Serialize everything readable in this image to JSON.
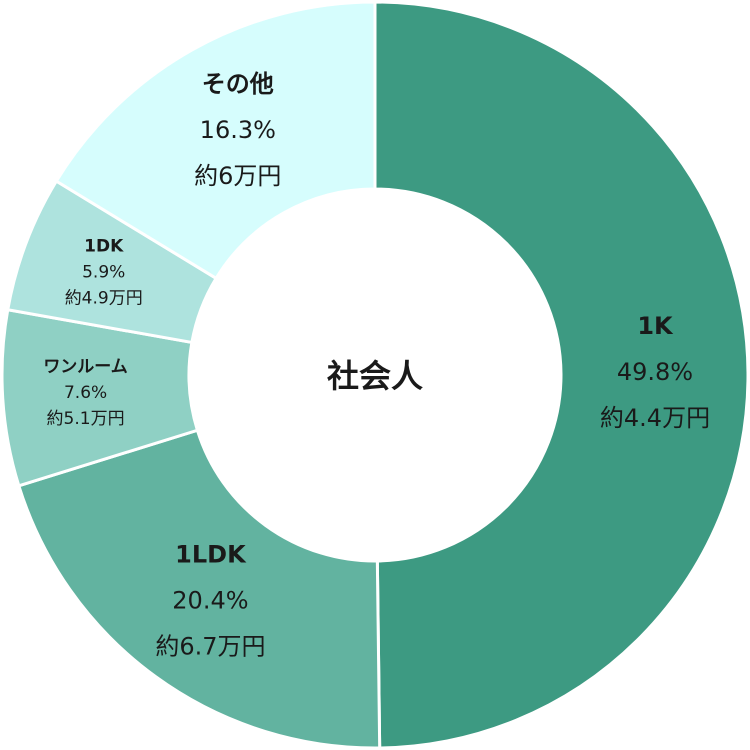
{
  "chart_data": {
    "type": "donut",
    "center_label": "社会人",
    "categories": [
      "1K",
      "1LDK",
      "ワンルーム",
      "1DK",
      "その他"
    ],
    "values": [
      49.8,
      20.4,
      7.6,
      5.9,
      16.3
    ],
    "value_labels": [
      "49.8%",
      "20.4%",
      "7.6%",
      "5.9%",
      "16.3%"
    ],
    "rents": [
      "約4.4万円",
      "約6.7万円",
      "約5.1万円",
      "約4.9万円",
      "約6万円"
    ],
    "colors": [
      "#3d9a82",
      "#62b3a0",
      "#8fd0c4",
      "#aee3de",
      "#d6fdfd"
    ]
  }
}
